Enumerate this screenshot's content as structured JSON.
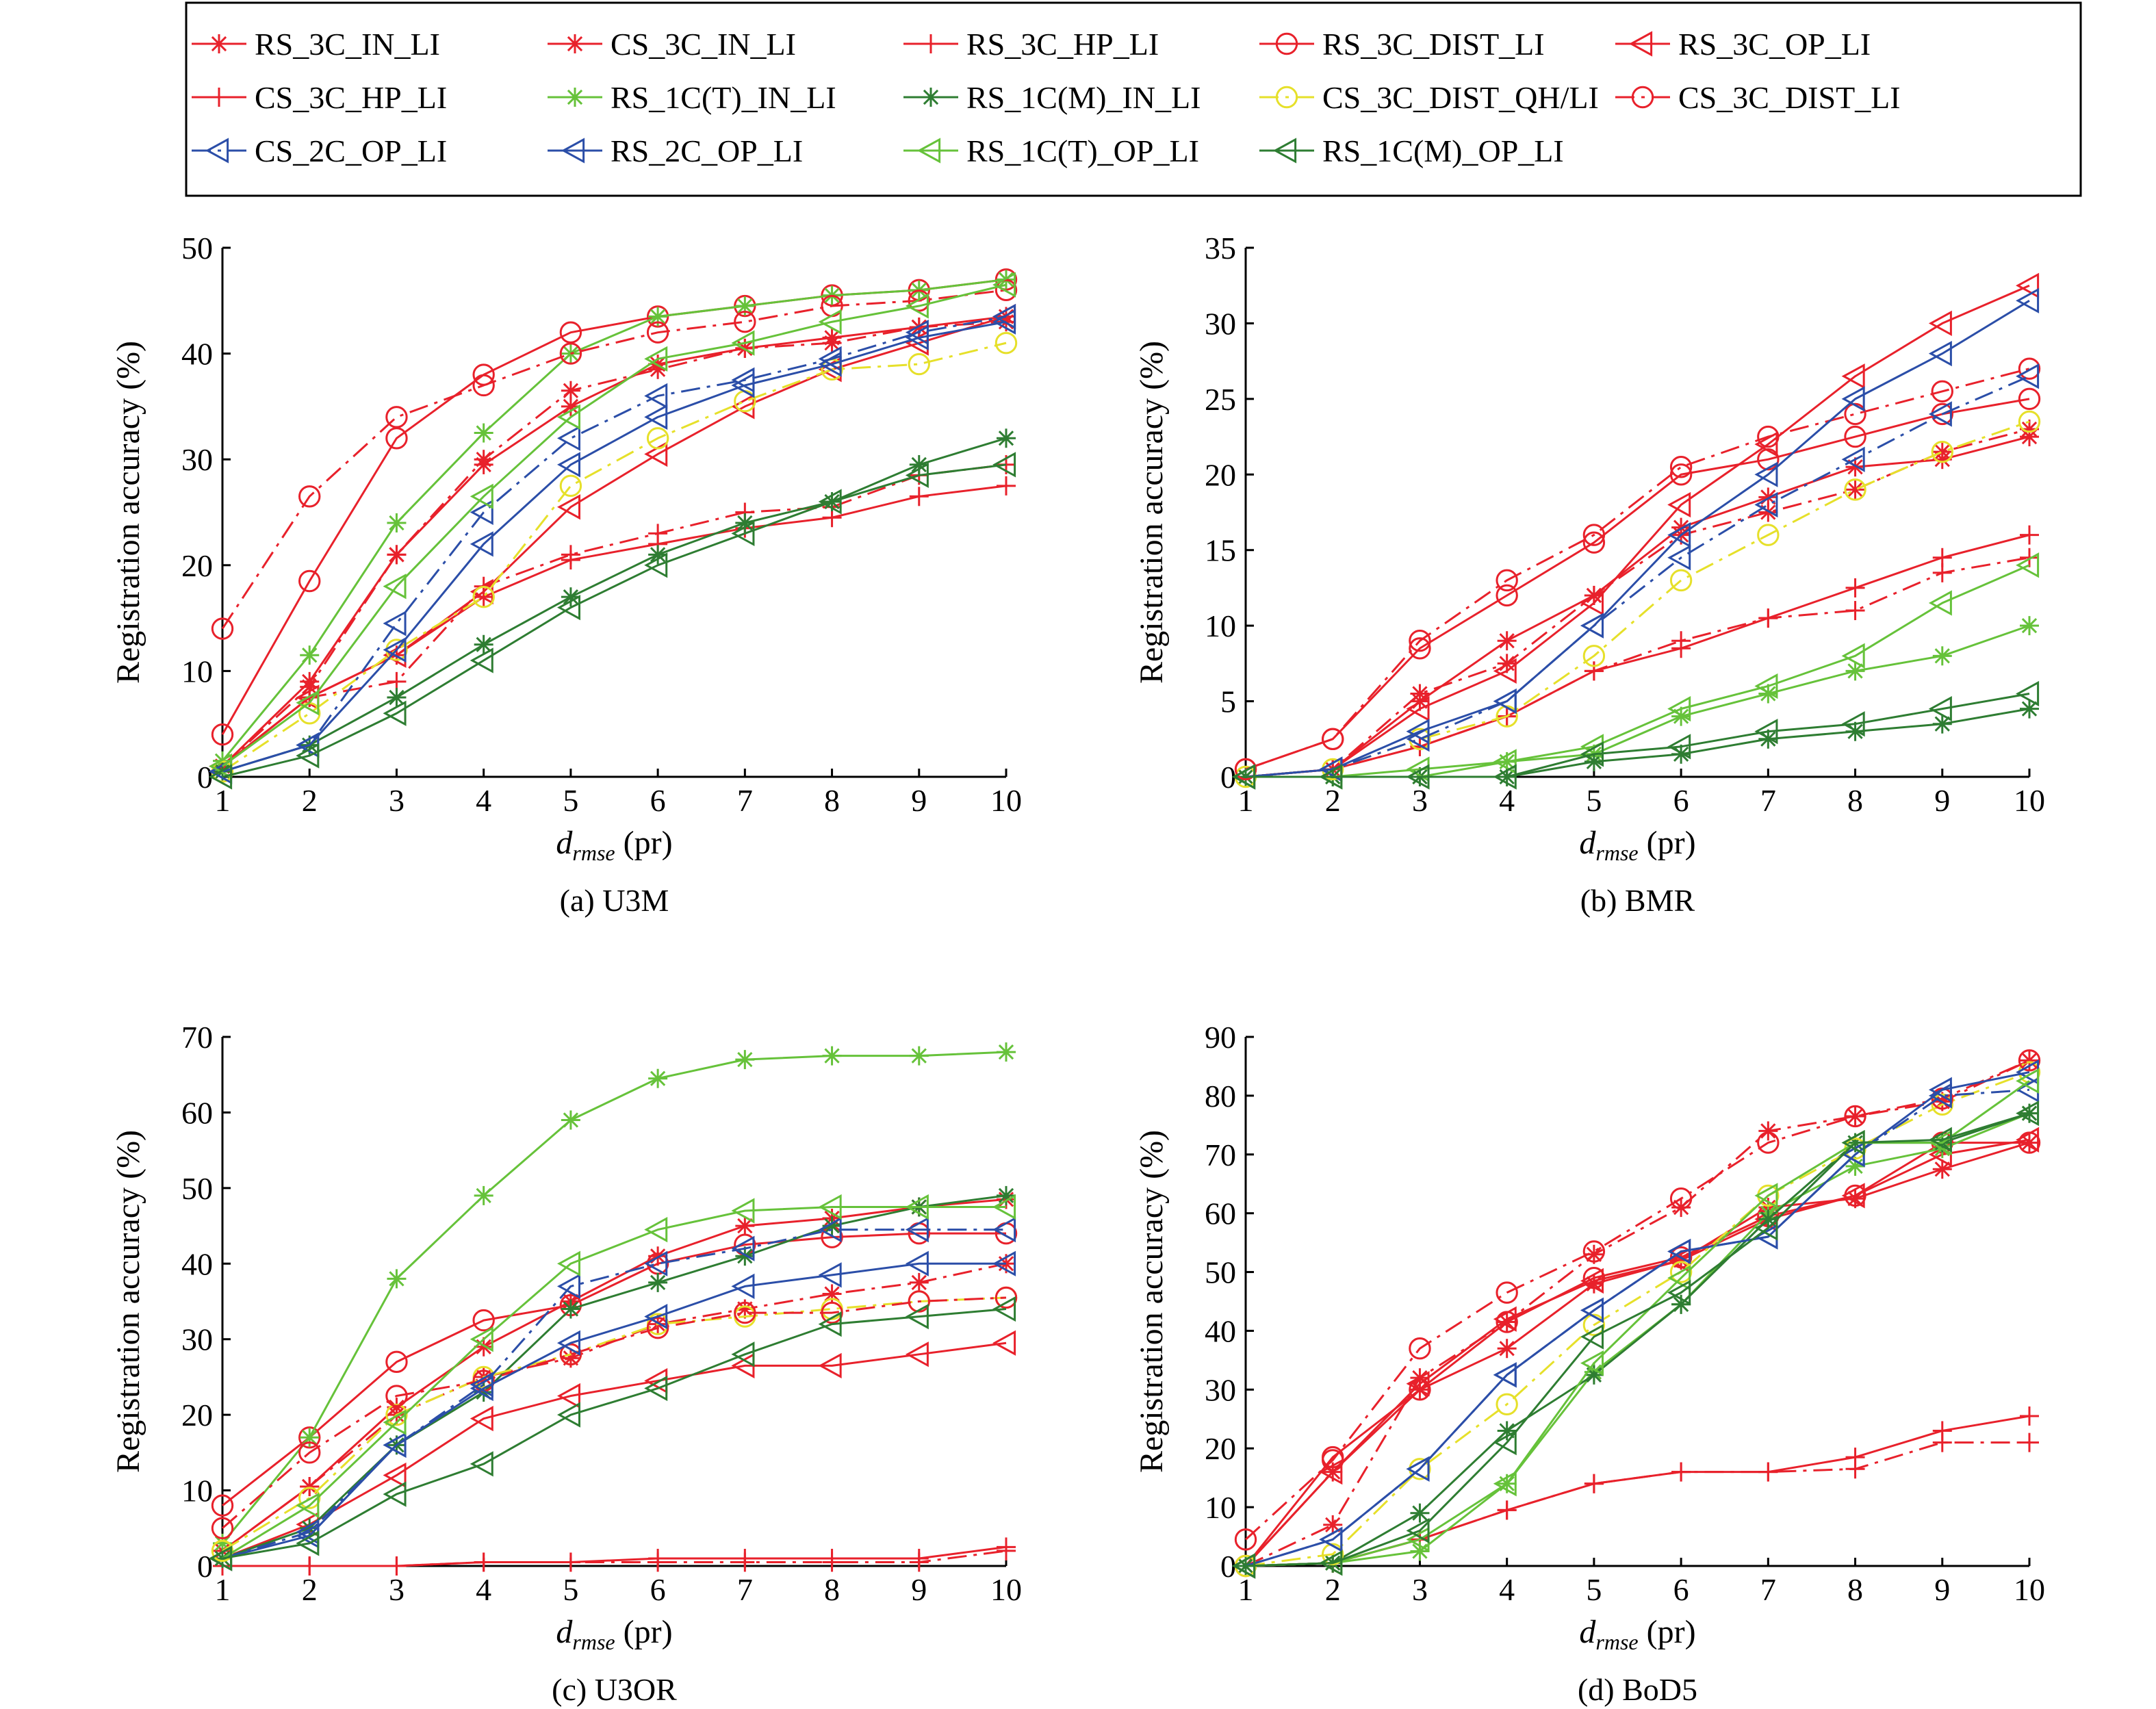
{
  "legend": [
    {
      "name": "RS_3C_IN_LI",
      "color": "#e8212b",
      "dash": "solid",
      "marker": "star"
    },
    {
      "name": "CS_3C_IN_LI",
      "color": "#e8212b",
      "dash": "dashdot",
      "marker": "star"
    },
    {
      "name": "RS_3C_HP_LI",
      "color": "#e8212b",
      "dash": "solid",
      "marker": "plus"
    },
    {
      "name": "RS_3C_DIST_LI",
      "color": "#e8212b",
      "dash": "solid",
      "marker": "circle"
    },
    {
      "name": "RS_3C_OP_LI",
      "color": "#e8212b",
      "dash": "solid",
      "marker": "triangle-left"
    },
    {
      "name": "CS_3C_HP_LI",
      "color": "#e8212b",
      "dash": "dashdot",
      "marker": "plus"
    },
    {
      "name": "RS_1C(T)_IN_LI",
      "color": "#66c23a",
      "dash": "solid",
      "marker": "star"
    },
    {
      "name": "RS_1C(M)_IN_LI",
      "color": "#2e7d32",
      "dash": "solid",
      "marker": "star"
    },
    {
      "name": "CS_3C_DIST_QH/LI",
      "color": "#e6e02a",
      "dash": "dashdot",
      "marker": "circle"
    },
    {
      "name": "CS_3C_DIST_LI",
      "color": "#e8212b",
      "dash": "dashdot",
      "marker": "circle"
    },
    {
      "name": "CS_2C_OP_LI",
      "color": "#2b4ea8",
      "dash": "dashdot",
      "marker": "triangle-left"
    },
    {
      "name": "RS_2C_OP_LI",
      "color": "#2b4ea8",
      "dash": "solid",
      "marker": "triangle-left"
    },
    {
      "name": "RS_1C(T)_OP_LI",
      "color": "#66c23a",
      "dash": "solid",
      "marker": "triangle-left"
    },
    {
      "name": "RS_1C(M)_OP_LI",
      "color": "#2e7d32",
      "dash": "solid",
      "marker": "triangle-left"
    }
  ],
  "chart_data": [
    {
      "type": "line",
      "caption": "(a) U3M",
      "ylabel": "Registration accuracy (%)",
      "xlabel_main": "d",
      "xlabel_sub": "rmse",
      "xlabel_unit": " (pr)",
      "x": [
        1,
        2,
        3,
        4,
        5,
        6,
        7,
        8,
        9,
        10
      ],
      "xlim": [
        1,
        10
      ],
      "ylim": [
        0,
        50
      ],
      "yticks": [
        0,
        10,
        20,
        30,
        40,
        50
      ],
      "series": [
        {
          "name": "RS_3C_IN_LI",
          "values": [
            1,
            9,
            21,
            29.5,
            35,
            39,
            40.5,
            41.5,
            42.5,
            43.5
          ]
        },
        {
          "name": "CS_3C_IN_LI",
          "values": [
            1,
            8.5,
            21,
            30,
            36.5,
            38.5,
            40.5,
            41,
            42.5,
            43
          ]
        },
        {
          "name": "RS_3C_HP_LI",
          "values": [
            1,
            7.5,
            11.5,
            17,
            20.5,
            22,
            23.5,
            24.5,
            26.5,
            27.5
          ]
        },
        {
          "name": "RS_3C_DIST_LI",
          "values": [
            4,
            18.5,
            32,
            38,
            42,
            43.5,
            44.5,
            45.5,
            46,
            47
          ]
        },
        {
          "name": "RS_3C_OP_LI",
          "values": [
            1,
            7.5,
            11.5,
            17.5,
            25.5,
            30.5,
            35,
            38.5,
            41,
            43.5
          ]
        },
        {
          "name": "CS_3C_HP_LI",
          "values": [
            1,
            7.5,
            9,
            18,
            21,
            23,
            25,
            25.5,
            28.5,
            29.5
          ]
        },
        {
          "name": "RS_1C(T)_IN_LI",
          "values": [
            1.5,
            11.5,
            24,
            32.5,
            40,
            43.5,
            44.5,
            45.5,
            46,
            47
          ]
        },
        {
          "name": "RS_1C(M)_IN_LI",
          "values": [
            0.5,
            3,
            7.5,
            12.5,
            17,
            21,
            24,
            26,
            29.5,
            32
          ]
        },
        {
          "name": "CS_3C_DIST_QH/LI",
          "values": [
            0.5,
            6,
            12,
            17,
            27.5,
            32,
            35.5,
            38.5,
            39,
            41
          ]
        },
        {
          "name": "CS_3C_DIST_LI",
          "values": [
            14,
            26.5,
            34,
            37,
            40,
            42,
            43,
            44.5,
            45,
            46
          ]
        },
        {
          "name": "CS_2C_OP_LI",
          "values": [
            0.5,
            3,
            14.5,
            25,
            32,
            36,
            37.5,
            39.5,
            42,
            43.5
          ]
        },
        {
          "name": "RS_2C_OP_LI",
          "values": [
            0.5,
            3,
            12,
            22,
            29.5,
            34,
            37,
            39,
            41.5,
            43
          ]
        },
        {
          "name": "RS_1C(T)_OP_LI",
          "values": [
            1,
            7,
            18,
            26.5,
            34,
            39.5,
            41,
            43,
            44.5,
            46.5
          ]
        },
        {
          "name": "RS_1C(M)_OP_LI",
          "values": [
            0,
            2,
            6,
            11,
            16,
            20,
            23,
            26,
            28.5,
            29.5
          ]
        }
      ]
    },
    {
      "type": "line",
      "caption": "(b) BMR",
      "ylabel": "Registration accuracy (%)",
      "xlabel_main": "d",
      "xlabel_sub": "rmse",
      "xlabel_unit": " (pr)",
      "x": [
        1,
        2,
        3,
        4,
        5,
        6,
        7,
        8,
        9,
        10
      ],
      "xlim": [
        1,
        10
      ],
      "ylim": [
        0,
        35
      ],
      "yticks": [
        0,
        5,
        10,
        15,
        20,
        25,
        30,
        35
      ],
      "series": [
        {
          "name": "RS_3C_IN_LI",
          "values": [
            0,
            0.5,
            5,
            9,
            12,
            16.5,
            18.5,
            20.5,
            21,
            22.5
          ]
        },
        {
          "name": "CS_3C_IN_LI",
          "values": [
            0,
            0.5,
            5.5,
            7.5,
            12,
            16,
            17.5,
            19,
            21.5,
            23
          ]
        },
        {
          "name": "RS_3C_HP_LI",
          "values": [
            0,
            0.5,
            2,
            4,
            7,
            8.5,
            10.5,
            12.5,
            14.5,
            16
          ]
        },
        {
          "name": "RS_3C_DIST_LI",
          "values": [
            0.5,
            2.5,
            8.5,
            12,
            15.5,
            20,
            21,
            22.5,
            24,
            25
          ]
        },
        {
          "name": "RS_3C_OP_LI",
          "values": [
            0,
            0.5,
            4.5,
            7,
            11.5,
            18,
            22,
            26.5,
            30,
            32.5
          ]
        },
        {
          "name": "CS_3C_HP_LI",
          "values": [
            0,
            0.5,
            2,
            4,
            7,
            9,
            10.5,
            11,
            13.5,
            14.5
          ]
        },
        {
          "name": "RS_1C(T)_IN_LI",
          "values": [
            0,
            0,
            0,
            1,
            1.5,
            4,
            5.5,
            7,
            8,
            10
          ]
        },
        {
          "name": "RS_1C(M)_IN_LI",
          "values": [
            0,
            0,
            0,
            0,
            1,
            1.5,
            2.5,
            3,
            3.5,
            4.5
          ]
        },
        {
          "name": "CS_3C_DIST_QH/LI",
          "values": [
            0,
            0.5,
            2.5,
            4,
            8,
            13,
            16,
            19,
            21.5,
            23.5
          ]
        },
        {
          "name": "CS_3C_DIST_LI",
          "values": [
            0.5,
            2.5,
            9,
            13,
            16,
            20.5,
            22.5,
            24,
            25.5,
            27
          ]
        },
        {
          "name": "CS_2C_OP_LI",
          "values": [
            0,
            0.5,
            2.5,
            5,
            10,
            14.5,
            18,
            21,
            24,
            26.5
          ]
        },
        {
          "name": "RS_2C_OP_LI",
          "values": [
            0,
            0.5,
            3,
            5,
            10,
            16,
            20,
            25,
            28,
            31.5
          ]
        },
        {
          "name": "RS_1C(T)_OP_LI",
          "values": [
            0,
            0,
            0.5,
            1,
            2,
            4.5,
            6,
            8,
            11.5,
            14
          ]
        },
        {
          "name": "RS_1C(M)_OP_LI",
          "values": [
            0,
            0,
            0,
            0,
            1.5,
            2,
            3,
            3.5,
            4.5,
            5.5
          ]
        }
      ]
    },
    {
      "type": "line",
      "caption": "(c) U3OR",
      "ylabel": "Registration accuracy (%)",
      "xlabel_main": "d",
      "xlabel_sub": "rmse",
      "xlabel_unit": " (pr)",
      "x": [
        1,
        2,
        3,
        4,
        5,
        6,
        7,
        8,
        9,
        10
      ],
      "xlim": [
        1,
        10
      ],
      "ylim": [
        0,
        70
      ],
      "yticks": [
        0,
        10,
        20,
        30,
        40,
        50,
        60,
        70
      ],
      "series": [
        {
          "name": "RS_3C_IN_LI",
          "values": [
            2,
            10.5,
            21,
            29,
            35,
            41,
            45,
            46,
            47.5,
            48.5
          ]
        },
        {
          "name": "CS_3C_IN_LI",
          "values": [
            2,
            10.5,
            20,
            25,
            27.5,
            32,
            34,
            36,
            37.5,
            40
          ]
        },
        {
          "name": "RS_3C_HP_LI",
          "values": [
            0,
            0,
            0,
            0.5,
            0.5,
            1,
            1,
            1,
            1,
            2.5
          ]
        },
        {
          "name": "RS_3C_DIST_LI",
          "values": [
            8,
            17,
            27,
            32.5,
            34.5,
            40,
            42.5,
            43.5,
            44,
            44
          ]
        },
        {
          "name": "RS_3C_OP_LI",
          "values": [
            1,
            5.5,
            12,
            19.5,
            22.5,
            24.5,
            26.5,
            26.5,
            28,
            29.5
          ]
        },
        {
          "name": "CS_3C_HP_LI",
          "values": [
            0,
            0,
            0,
            0.5,
            0.5,
            0.5,
            0.5,
            0.5,
            0.5,
            2
          ]
        },
        {
          "name": "RS_1C(T)_IN_LI",
          "values": [
            3,
            17,
            38,
            49,
            59,
            64.5,
            67,
            67.5,
            67.5,
            68
          ]
        },
        {
          "name": "RS_1C(M)_IN_LI",
          "values": [
            1,
            5,
            16,
            23,
            34,
            37.5,
            41,
            45,
            47.5,
            49
          ]
        },
        {
          "name": "CS_3C_DIST_QH/LI",
          "values": [
            2,
            9,
            20,
            25,
            28,
            32,
            33,
            34,
            35,
            35.5
          ]
        },
        {
          "name": "CS_3C_DIST_LI",
          "values": [
            5,
            15,
            22.5,
            24.5,
            28,
            31.5,
            33.5,
            33.5,
            35,
            35.5
          ]
        },
        {
          "name": "CS_2C_OP_LI",
          "values": [
            1,
            4.5,
            16,
            24,
            37,
            40,
            42,
            44.5,
            44.5,
            44.5
          ]
        },
        {
          "name": "RS_2C_OP_LI",
          "values": [
            1,
            4,
            16,
            23.5,
            29.5,
            33,
            37,
            38.5,
            40,
            40
          ]
        },
        {
          "name": "RS_1C(T)_OP_LI",
          "values": [
            1,
            8,
            19,
            30,
            40,
            44.5,
            47,
            47.5,
            47.5,
            47.5
          ]
        },
        {
          "name": "RS_1C(M)_OP_LI",
          "values": [
            1,
            3,
            9.5,
            13.5,
            20,
            23.5,
            28,
            32,
            33,
            34
          ]
        }
      ]
    },
    {
      "type": "line",
      "caption": "(d) BoD5",
      "ylabel": "Registration accuracy (%)",
      "xlabel_main": "d",
      "xlabel_sub": "rmse",
      "xlabel_unit": " (pr)",
      "x": [
        1,
        2,
        3,
        4,
        5,
        6,
        7,
        8,
        9,
        10
      ],
      "xlim": [
        1,
        10
      ],
      "ylim": [
        0,
        90
      ],
      "yticks": [
        0,
        10,
        20,
        30,
        40,
        50,
        60,
        70,
        80,
        90
      ],
      "series": [
        {
          "name": "RS_3C_IN_LI",
          "values": [
            0,
            16,
            30,
            37,
            48,
            52,
            61,
            62.5,
            67.5,
            72
          ]
        },
        {
          "name": "CS_3C_IN_LI",
          "values": [
            0,
            7,
            32,
            41.5,
            53,
            61,
            74,
            76.5,
            79,
            86
          ]
        },
        {
          "name": "RS_3C_HP_LI",
          "values": [
            0,
            0.5,
            4.5,
            9.5,
            14,
            16,
            16,
            18.5,
            23,
            25.5
          ]
        },
        {
          "name": "RS_3C_DIST_LI",
          "values": [
            0,
            18.5,
            30,
            41.5,
            49,
            52.5,
            59.5,
            63,
            72,
            72
          ]
        },
        {
          "name": "RS_3C_OP_LI",
          "values": [
            0,
            16,
            31,
            42,
            48.5,
            52,
            59,
            63,
            70,
            72.5
          ]
        },
        {
          "name": "CS_3C_HP_LI",
          "values": [
            0,
            0.5,
            4.5,
            9.5,
            14,
            16,
            16,
            16.5,
            21,
            21
          ]
        },
        {
          "name": "RS_1C(T)_IN_LI",
          "values": [
            0,
            0.5,
            2.5,
            14,
            33,
            44.5,
            60,
            68,
            71,
            77
          ]
        },
        {
          "name": "RS_1C(M)_IN_LI",
          "values": [
            0,
            0.5,
            9,
            23,
            32.5,
            44.5,
            59,
            72,
            72,
            77
          ]
        },
        {
          "name": "CS_3C_DIST_QH/LI",
          "values": [
            0,
            2,
            16.5,
            27.5,
            41,
            50,
            63,
            71,
            78.5,
            84
          ]
        },
        {
          "name": "CS_3C_DIST_LI",
          "values": [
            4.5,
            18,
            37,
            46.5,
            53.5,
            62.5,
            72,
            76.5,
            79.5,
            86
          ]
        },
        {
          "name": "CS_2C_OP_LI",
          "values": [
            0,
            4.5,
            16.5,
            32.5,
            43.5,
            53.5,
            56,
            70,
            80,
            81
          ]
        },
        {
          "name": "RS_2C_OP_LI",
          "values": [
            0,
            4.5,
            16.5,
            32.5,
            43.5,
            53.5,
            56,
            70,
            81,
            84
          ]
        },
        {
          "name": "RS_1C(T)_OP_LI",
          "values": [
            0,
            0.5,
            4.5,
            14,
            34.5,
            49,
            63,
            72,
            72,
            82.5
          ]
        },
        {
          "name": "RS_1C(M)_OP_LI",
          "values": [
            0,
            0.5,
            6,
            21,
            39,
            46.5,
            57.5,
            72,
            72.5,
            77
          ]
        }
      ]
    }
  ]
}
